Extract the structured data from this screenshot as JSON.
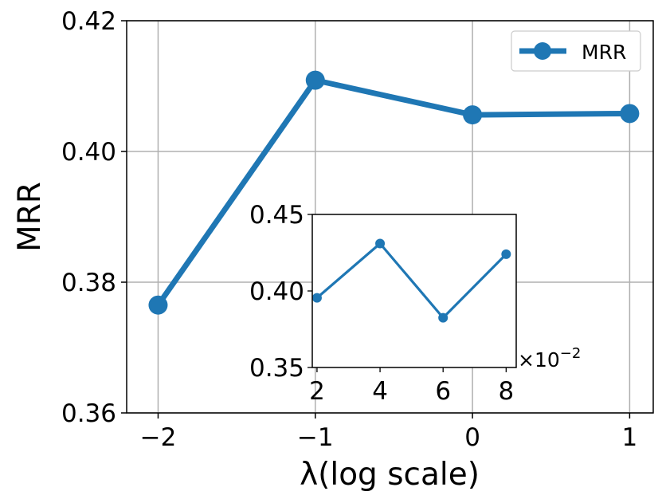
{
  "chart_data": [
    {
      "type": "line",
      "xlabel": "λ(log scale)",
      "ylabel": "MRR",
      "x": [
        -2,
        -1,
        0,
        1
      ],
      "x_tick_labels": [
        "−2",
        "−1",
        "0",
        "1"
      ],
      "y_ticks": [
        0.36,
        0.38,
        0.4,
        0.42
      ],
      "y_tick_labels": [
        "0.36",
        "0.38",
        "0.40",
        "0.42"
      ],
      "xlim": [
        -2.2,
        1.15
      ],
      "ylim": [
        0.36,
        0.42
      ],
      "grid": true,
      "legend": "top-right",
      "series": [
        {
          "name": "MRR",
          "values": [
            0.3765,
            0.4109,
            0.4056,
            0.4058
          ],
          "color": "#1f77b4"
        }
      ]
    },
    {
      "type": "line",
      "inset": true,
      "x": [
        0.02,
        0.04,
        0.06,
        0.08
      ],
      "x_tick_labels": [
        "2",
        "4",
        "6",
        "8"
      ],
      "x_multiplier_label": "×10",
      "x_multiplier_exponent": "−2",
      "y_ticks": [
        0.35,
        0.4,
        0.45
      ],
      "y_tick_labels": [
        "0.35",
        "0.40",
        "0.45"
      ],
      "xlim": [
        0.0185,
        0.0832
      ],
      "ylim": [
        0.35,
        0.45
      ],
      "grid": false,
      "series": [
        {
          "values": [
            0.3955,
            0.431,
            0.3825,
            0.424
          ],
          "color": "#1f77b4"
        }
      ]
    }
  ]
}
